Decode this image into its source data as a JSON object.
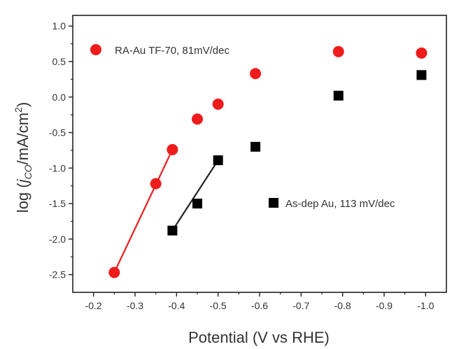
{
  "chart_data": {
    "type": "scatter",
    "xlabel": "Potential (V vs RHE)",
    "ylabel_parts": {
      "prefix": "log (",
      "j": "j",
      "sub": "CO",
      "unit": "/mA/cm",
      "sup": "2",
      "suffix": ")"
    },
    "xlim": [
      -0.15,
      -1.05
    ],
    "ylim": [
      -2.75,
      1.15
    ],
    "x_ticks": [
      "-0.2",
      "-0.3",
      "-0.4",
      "-0.5",
      "-0.6",
      "-0.7",
      "-0.8",
      "-0.9",
      "-1.0"
    ],
    "x_tick_values": [
      -0.2,
      -0.3,
      -0.4,
      -0.5,
      -0.6,
      -0.7,
      -0.8,
      -0.9,
      -1.0
    ],
    "y_ticks": [
      "1.0",
      "0.5",
      "0.0",
      "-0.5",
      "-1.0",
      "-1.5",
      "-2.0",
      "-2.5"
    ],
    "y_tick_values": [
      1.0,
      0.5,
      0.0,
      -0.5,
      -1.0,
      -1.5,
      -2.0,
      -2.5
    ],
    "series": [
      {
        "name": "RA-Au TF-70, 81mV/dec",
        "marker": "circle",
        "color": "#ee1c1c",
        "points": [
          [
            -0.25,
            -2.47
          ],
          [
            -0.35,
            -1.22
          ],
          [
            -0.39,
            -0.74
          ],
          [
            -0.45,
            -0.31
          ],
          [
            -0.5,
            -0.1
          ],
          [
            -0.59,
            0.33
          ],
          [
            -0.79,
            0.64
          ],
          [
            -0.99,
            0.62
          ]
        ],
        "fit_line": [
          [
            -0.25,
            -2.47
          ],
          [
            -0.39,
            -0.74
          ]
        ]
      },
      {
        "name": "As-dep Au, 113 mV/dec",
        "marker": "square",
        "color": "#000000",
        "points": [
          [
            -0.39,
            -1.88
          ],
          [
            -0.45,
            -1.5
          ],
          [
            -0.5,
            -0.89
          ],
          [
            -0.59,
            -0.7
          ],
          [
            -0.79,
            0.02
          ],
          [
            -0.99,
            0.31
          ]
        ],
        "fit_line": [
          [
            -0.39,
            -1.88
          ],
          [
            -0.5,
            -0.89
          ]
        ]
      }
    ]
  }
}
